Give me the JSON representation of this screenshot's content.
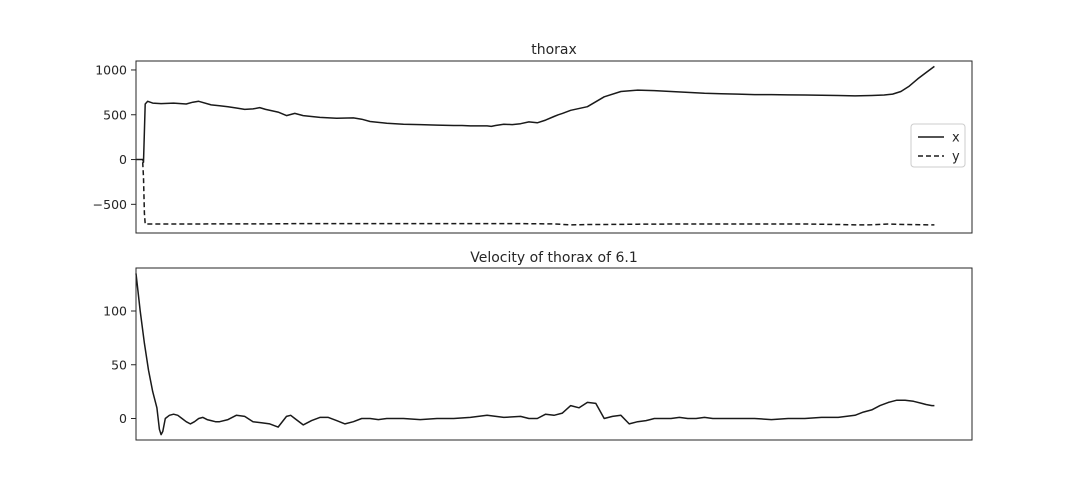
{
  "chart_data": [
    {
      "type": "line",
      "title": "thorax",
      "xlabel": "",
      "ylabel": "",
      "xlim": [
        0,
        1000
      ],
      "ylim": [
        -820,
        1100
      ],
      "yticks": [
        1000,
        500,
        0,
        -500
      ],
      "ytick_labels": [
        "1000",
        "500",
        "0",
        "−500"
      ],
      "legend": {
        "position": "center-right"
      },
      "series": [
        {
          "name": "x",
          "style": "solid",
          "color": "#1a1a1a",
          "x": [
            0,
            8,
            9,
            11,
            14,
            20,
            30,
            45,
            60,
            68,
            75,
            90,
            100,
            110,
            120,
            130,
            140,
            148,
            155,
            170,
            180,
            190,
            200,
            220,
            240,
            260,
            270,
            280,
            300,
            320,
            340,
            360,
            380,
            390,
            400,
            410,
            420,
            425,
            430,
            440,
            450,
            460,
            470,
            480,
            490,
            500,
            505,
            510,
            520,
            540,
            560,
            580,
            600,
            620,
            640,
            660,
            680,
            700,
            720,
            740,
            760,
            780,
            800,
            820,
            840,
            860,
            880,
            895,
            905,
            915,
            925,
            935,
            945,
            955
          ],
          "y": [
            0,
            0,
            -30,
            620,
            650,
            630,
            625,
            630,
            620,
            640,
            650,
            610,
            600,
            590,
            575,
            560,
            565,
            580,
            560,
            530,
            490,
            515,
            490,
            470,
            460,
            465,
            450,
            425,
            405,
            395,
            390,
            385,
            380,
            380,
            375,
            375,
            375,
            370,
            380,
            395,
            390,
            400,
            420,
            410,
            440,
            480,
            500,
            515,
            550,
            590,
            700,
            760,
            775,
            770,
            760,
            750,
            740,
            735,
            730,
            725,
            725,
            722,
            720,
            718,
            715,
            710,
            715,
            720,
            730,
            760,
            820,
            900,
            970,
            1040
          ]
        },
        {
          "name": "y",
          "style": "dashed",
          "color": "#1a1a1a",
          "x": [
            8,
            9,
            10,
            11,
            50,
            100,
            150,
            200,
            250,
            300,
            350,
            400,
            450,
            500,
            520,
            540,
            560,
            600,
            650,
            700,
            750,
            800,
            840,
            860,
            880,
            900,
            920,
            955
          ],
          "y": [
            -30,
            -200,
            -600,
            -720,
            -720,
            -718,
            -718,
            -715,
            -715,
            -715,
            -715,
            -715,
            -715,
            -718,
            -730,
            -725,
            -725,
            -722,
            -720,
            -720,
            -720,
            -720,
            -725,
            -730,
            -728,
            -720,
            -725,
            -730
          ]
        }
      ]
    },
    {
      "type": "line",
      "title": "Velocity of thorax of 6.1",
      "xlabel": "",
      "ylabel": "",
      "xlim": [
        0,
        1000
      ],
      "ylim": [
        -20,
        140
      ],
      "yticks": [
        100,
        50,
        0
      ],
      "ytick_labels": [
        "100",
        "50",
        "0"
      ],
      "series": [
        {
          "style": "solid",
          "color": "#1a1a1a",
          "x": [
            0,
            5,
            10,
            15,
            20,
            25,
            28,
            30,
            32,
            35,
            40,
            45,
            50,
            55,
            60,
            65,
            70,
            75,
            80,
            85,
            90,
            95,
            100,
            110,
            120,
            130,
            140,
            150,
            160,
            170,
            180,
            185,
            190,
            200,
            210,
            220,
            230,
            240,
            250,
            260,
            270,
            280,
            290,
            300,
            320,
            340,
            360,
            380,
            400,
            420,
            440,
            460,
            470,
            480,
            490,
            500,
            510,
            520,
            530,
            540,
            550,
            560,
            570,
            580,
            590,
            600,
            610,
            615,
            620,
            630,
            640,
            650,
            660,
            670,
            680,
            690,
            700,
            720,
            740,
            760,
            780,
            800,
            820,
            840,
            860,
            870,
            880,
            890,
            900,
            910,
            920,
            930,
            940,
            945,
            952,
            955
          ],
          "y": [
            135,
            100,
            70,
            45,
            25,
            10,
            -10,
            -15,
            -12,
            0,
            3,
            4,
            3,
            0,
            -3,
            -5,
            -3,
            0,
            1,
            -1,
            -2,
            -3,
            -3,
            -1,
            3,
            2,
            -3,
            -4,
            -5,
            -8,
            2,
            3,
            0,
            -6,
            -2,
            1,
            1,
            -2,
            -5,
            -3,
            0,
            0,
            -1,
            0,
            0,
            -1,
            0,
            0,
            1,
            3,
            1,
            2,
            0,
            0,
            4,
            3,
            5,
            12,
            10,
            15,
            14,
            0,
            2,
            3,
            -5,
            -3,
            -2,
            -1,
            0,
            0,
            0,
            1,
            0,
            0,
            1,
            0,
            0,
            0,
            0,
            -1,
            0,
            0,
            1,
            1,
            3,
            6,
            8,
            12,
            15,
            17,
            17,
            16,
            14,
            13,
            12,
            12
          ]
        }
      ]
    }
  ]
}
